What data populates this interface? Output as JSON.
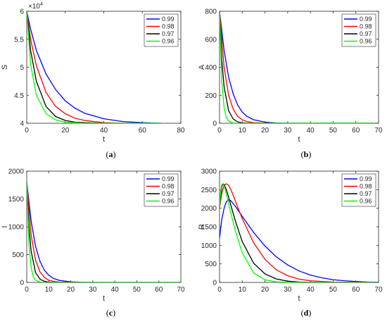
{
  "figure": {
    "series_names": [
      "0.99",
      "0.98",
      "0.97",
      "0.96"
    ],
    "series_colors": [
      "#0000ff",
      "#ff0000",
      "#000000",
      "#00ff00"
    ]
  },
  "chart_data": [
    {
      "type": "line",
      "panel_label": "(a)",
      "xlabel": "t",
      "ylabel": "S",
      "xlim": [
        0,
        80
      ],
      "ylim": [
        40000,
        60000
      ],
      "x_ticks": [
        0,
        20,
        40,
        60,
        80
      ],
      "x_tick_labels": [
        "0",
        "20",
        "40",
        "60",
        "80"
      ],
      "y_ticks": [
        40000,
        45000,
        50000,
        55000,
        60000
      ],
      "y_tick_labels": [
        "4",
        "4.5",
        "5",
        "5.5",
        "6"
      ],
      "y_exponent_label": "×10",
      "y_exponent_power": "4",
      "legend_position": "top-right",
      "grid": false,
      "series": [
        {
          "name": "0.99",
          "color": "#0000ff",
          "x": [
            0,
            2,
            5,
            10,
            15,
            20,
            25,
            30,
            40,
            50,
            60,
            70
          ],
          "y": [
            60000,
            56800,
            53000,
            48800,
            46000,
            44000,
            42700,
            41800,
            40800,
            40300,
            40100,
            40000
          ]
        },
        {
          "name": "0.98",
          "color": "#ff0000",
          "x": [
            0,
            2,
            5,
            10,
            15,
            20,
            25,
            30,
            40,
            50,
            60,
            70
          ],
          "y": [
            60000,
            55000,
            50300,
            45500,
            43000,
            41700,
            40900,
            40500,
            40100,
            40000,
            40000,
            40000
          ]
        },
        {
          "name": "0.97",
          "color": "#000000",
          "x": [
            0,
            2,
            5,
            10,
            15,
            20,
            25,
            30,
            40,
            50,
            60,
            70
          ],
          "y": [
            60000,
            53000,
            47500,
            43000,
            41200,
            40500,
            40200,
            40100,
            40000,
            40000,
            40000,
            40000
          ]
        },
        {
          "name": "0.96",
          "color": "#00ff00",
          "x": [
            0,
            2,
            5,
            10,
            15,
            20,
            25,
            30,
            40,
            50,
            60,
            70
          ],
          "y": [
            60000,
            50500,
            45000,
            41700,
            40600,
            40200,
            40100,
            40000,
            40000,
            40000,
            40000,
            40000
          ]
        }
      ]
    },
    {
      "type": "line",
      "panel_label": "(b)",
      "xlabel": "t",
      "ylabel": "A",
      "xlim": [
        0,
        70
      ],
      "ylim": [
        0,
        800
      ],
      "x_ticks": [
        0,
        10,
        20,
        30,
        40,
        50,
        60,
        70
      ],
      "x_tick_labels": [
        "0",
        "10",
        "20",
        "30",
        "40",
        "50",
        "60",
        "70"
      ],
      "y_ticks": [
        0,
        200,
        400,
        600,
        800
      ],
      "y_tick_labels": [
        "0",
        "200",
        "400",
        "600",
        "800"
      ],
      "legend_position": "top-right",
      "grid": false,
      "series": [
        {
          "name": "0.99",
          "color": "#0000ff",
          "x": [
            0,
            2,
            4,
            6,
            8,
            10,
            12,
            15,
            20,
            25,
            30,
            40,
            70
          ],
          "y": [
            800,
            520,
            330,
            210,
            130,
            80,
            50,
            25,
            8,
            2,
            0,
            0,
            0
          ]
        },
        {
          "name": "0.98",
          "color": "#ff0000",
          "x": [
            0,
            2,
            4,
            6,
            8,
            10,
            12,
            15,
            20,
            25,
            30,
            40,
            70
          ],
          "y": [
            800,
            400,
            200,
            100,
            50,
            25,
            12,
            4,
            1,
            0,
            0,
            0,
            0
          ]
        },
        {
          "name": "0.97",
          "color": "#000000",
          "x": [
            0,
            1,
            2,
            4,
            6,
            8,
            10,
            12,
            15,
            20,
            30,
            40,
            70
          ],
          "y": [
            800,
            450,
            260,
            90,
            30,
            10,
            3,
            1,
            0,
            0,
            0,
            0,
            0
          ]
        },
        {
          "name": "0.96",
          "color": "#00ff00",
          "x": [
            0,
            1,
            2,
            3,
            4,
            6,
            8,
            10,
            15,
            20,
            30,
            40,
            70
          ],
          "y": [
            800,
            300,
            110,
            40,
            15,
            2,
            0,
            0,
            0,
            0,
            0,
            0,
            0
          ]
        }
      ]
    },
    {
      "type": "line",
      "panel_label": "(c)",
      "xlabel": "t",
      "ylabel": "I",
      "xlim": [
        0,
        70
      ],
      "ylim": [
        0,
        2000
      ],
      "x_ticks": [
        0,
        10,
        20,
        30,
        40,
        50,
        60,
        70
      ],
      "x_tick_labels": [
        "0",
        "10",
        "20",
        "30",
        "40",
        "50",
        "60",
        "70"
      ],
      "y_ticks": [
        0,
        500,
        1000,
        1500,
        2000
      ],
      "y_tick_labels": [
        "0",
        "500",
        "1000",
        "1500",
        "2000"
      ],
      "legend_position": "top-right",
      "grid": false,
      "series": [
        {
          "name": "0.99",
          "color": "#0000ff",
          "x": [
            0,
            2,
            4,
            6,
            8,
            10,
            12,
            15,
            20,
            25,
            30,
            40,
            70
          ],
          "y": [
            1800,
            1100,
            650,
            380,
            220,
            130,
            75,
            35,
            10,
            3,
            0,
            0,
            0
          ]
        },
        {
          "name": "0.98",
          "color": "#ff0000",
          "x": [
            0,
            2,
            4,
            6,
            8,
            10,
            12,
            15,
            20,
            25,
            30,
            40,
            70
          ],
          "y": [
            1800,
            850,
            400,
            190,
            90,
            40,
            20,
            6,
            1,
            0,
            0,
            0,
            0
          ]
        },
        {
          "name": "0.97",
          "color": "#000000",
          "x": [
            0,
            1,
            2,
            4,
            6,
            8,
            10,
            12,
            15,
            20,
            30,
            40,
            70
          ],
          "y": [
            1800,
            1000,
            560,
            180,
            60,
            20,
            6,
            2,
            0,
            0,
            0,
            0,
            0
          ]
        },
        {
          "name": "0.96",
          "color": "#00ff00",
          "x": [
            0,
            1,
            2,
            3,
            4,
            6,
            8,
            10,
            15,
            20,
            30,
            40,
            70
          ],
          "y": [
            1800,
            700,
            270,
            100,
            40,
            6,
            1,
            0,
            0,
            0,
            0,
            0,
            0
          ]
        }
      ]
    },
    {
      "type": "line",
      "panel_label": "(d)",
      "xlabel": "t",
      "ylabel": "R",
      "xlim": [
        0,
        70
      ],
      "ylim": [
        0,
        3000
      ],
      "x_ticks": [
        0,
        10,
        20,
        30,
        40,
        50,
        60,
        70
      ],
      "x_tick_labels": [
        "0",
        "10",
        "20",
        "30",
        "40",
        "50",
        "60",
        "70"
      ],
      "y_ticks": [
        0,
        500,
        1000,
        1500,
        2000,
        2500,
        3000
      ],
      "y_tick_labels": [
        "0",
        "500",
        "1000",
        "1500",
        "2000",
        "2500",
        "3000"
      ],
      "legend_position": "top-right",
      "grid": false,
      "series": [
        {
          "name": "0.99",
          "color": "#0000ff",
          "x": [
            0,
            1,
            2,
            3,
            4,
            5,
            7,
            10,
            15,
            20,
            25,
            30,
            35,
            40,
            45,
            50,
            55,
            60,
            65,
            70
          ],
          "y": [
            1200,
            1700,
            2000,
            2180,
            2230,
            2200,
            2050,
            1780,
            1350,
            980,
            690,
            470,
            310,
            200,
            125,
            75,
            45,
            25,
            12,
            5
          ]
        },
        {
          "name": "0.98",
          "color": "#ff0000",
          "x": [
            0,
            1,
            2,
            3,
            4,
            5,
            6,
            8,
            10,
            15,
            20,
            25,
            30,
            35,
            40,
            50,
            60,
            70
          ],
          "y": [
            2000,
            2400,
            2620,
            2660,
            2620,
            2500,
            2350,
            2030,
            1720,
            1070,
            620,
            340,
            180,
            90,
            45,
            10,
            2,
            0
          ]
        },
        {
          "name": "0.97",
          "color": "#000000",
          "x": [
            0,
            0.5,
            1,
            1.5,
            2,
            3,
            4,
            5,
            7,
            10,
            15,
            20,
            25,
            30,
            35,
            40,
            50,
            70
          ],
          "y": [
            2000,
            2350,
            2570,
            2660,
            2640,
            2500,
            2300,
            2080,
            1650,
            1100,
            520,
            230,
            95,
            35,
            12,
            4,
            0,
            0
          ]
        },
        {
          "name": "0.96",
          "color": "#00ff00",
          "x": [
            0,
            0.5,
            1,
            1.5,
            2,
            2.5,
            3,
            4,
            5,
            7,
            10,
            15,
            20,
            25,
            30,
            40,
            70
          ],
          "y": [
            2000,
            2450,
            2640,
            2660,
            2600,
            2500,
            2380,
            2130,
            1870,
            1380,
            800,
            260,
            70,
            15,
            3,
            0,
            0
          ]
        }
      ]
    }
  ]
}
